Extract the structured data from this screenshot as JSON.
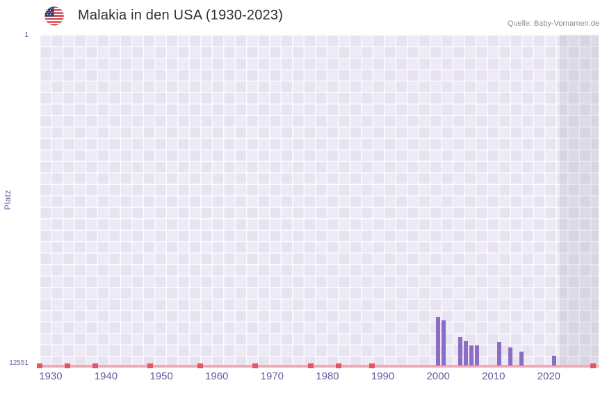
{
  "header": {
    "source": "Quelle: Baby-Vornamen.de",
    "flag_icon": "us-flag-round"
  },
  "chart_data": {
    "type": "bar",
    "title": "Malakia in den USA (1930-2023)",
    "xlabel": "",
    "ylabel": "Platz",
    "y_axis": {
      "top_label": "1",
      "bottom_label": "12551",
      "min": 1,
      "max": 12551,
      "inverted": true
    },
    "x_range": [
      1928,
      2029
    ],
    "x_ticks": [
      1930,
      1940,
      1950,
      1960,
      1970,
      1980,
      1990,
      2000,
      2010,
      2020
    ],
    "bars": [
      {
        "year": 2000,
        "rank": 10700
      },
      {
        "year": 2001,
        "rank": 10850
      },
      {
        "year": 2004,
        "rank": 11480
      },
      {
        "year": 2005,
        "rank": 11630
      },
      {
        "year": 2006,
        "rank": 11790
      },
      {
        "year": 2007,
        "rank": 11790
      },
      {
        "year": 2011,
        "rank": 11650
      },
      {
        "year": 2013,
        "rank": 11860
      },
      {
        "year": 2015,
        "rank": 12030
      },
      {
        "year": 2021,
        "rank": 12180
      }
    ],
    "unranked_years": [
      1928,
      1933,
      1938,
      1948,
      1957,
      1967,
      1977,
      1982,
      1988,
      2028
    ],
    "no_data_region_start": 2022,
    "grid": true,
    "legend": false,
    "colors": {
      "bar": "#8d6cc4",
      "baseline": "#f2aab2",
      "unranked": "#e25763",
      "axis_text": "#6b5b9e",
      "grid_a": "#e7e3f1",
      "grid_b": "#ede9f6"
    }
  }
}
